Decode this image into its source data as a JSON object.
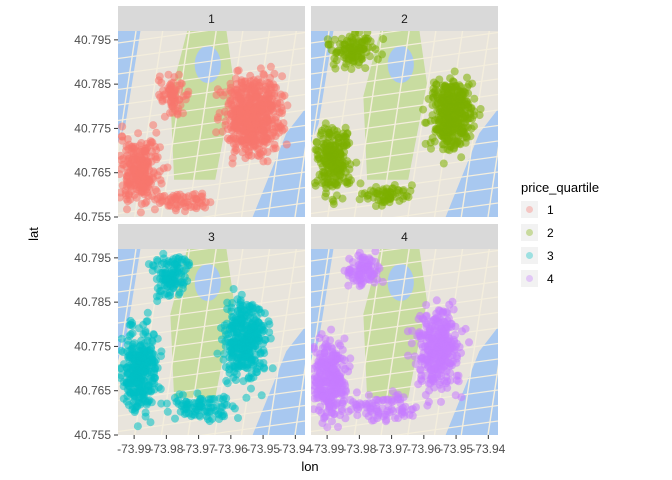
{
  "chart_data": {
    "type": "scatter",
    "facet_variable": "price_quartile",
    "panels": [
      {
        "label": "1",
        "color": "#F8766D"
      },
      {
        "label": "2",
        "color": "#7CAE00"
      },
      {
        "label": "3",
        "color": "#00BFC4"
      },
      {
        "label": "4",
        "color": "#C77CFF"
      }
    ],
    "xlabel": "lon",
    "ylabel": "lat",
    "xlim": [
      -73.995,
      -73.937
    ],
    "ylim": [
      40.755,
      40.797
    ],
    "x_ticks": [
      "-73.99",
      "-73.98",
      "-73.97",
      "-73.96",
      "-73.95",
      "-73.94"
    ],
    "y_ticks": [
      "40.755",
      "40.765",
      "40.775",
      "40.785",
      "40.795"
    ],
    "x_tick_values": [
      -73.99,
      -73.98,
      -73.97,
      -73.96,
      -73.95,
      -73.94
    ],
    "y_tick_values": [
      40.755,
      40.765,
      40.775,
      40.785,
      40.795
    ],
    "legend": {
      "title": "price_quartile",
      "placement": "right",
      "entries": [
        "1",
        "2",
        "3",
        "4"
      ]
    },
    "background": "street map of Manhattan around Central Park",
    "map_colors": {
      "land": "#e8e4dc",
      "water": "#a8c8f0",
      "park": "#c8dca0",
      "road": "#f4eedd"
    }
  }
}
